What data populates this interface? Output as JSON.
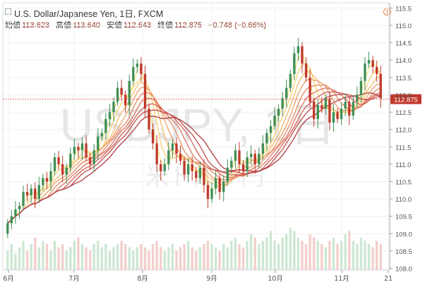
{
  "header": {
    "title": "U.S. Dollar/Japanese Yen, 1日, FXCM",
    "open_label": "始値",
    "open": "113.623",
    "high_label": "高値",
    "high": "113.640",
    "low_label": "安値",
    "low": "112.643",
    "close_label": "終値",
    "close": "112.875",
    "change": "−0.748 (−0.66%)"
  },
  "watermark": {
    "symbol": "USDJPY, 1日",
    "name": "米ドル / 円"
  },
  "colors": {
    "up": "#3f8f55",
    "down": "#c0392b",
    "price_line": "#e04a3a",
    "badge": "#c0392b",
    "warning": "#e8833a",
    "ribbon": [
      "#fbe58a",
      "#f7d06f",
      "#f3b96a",
      "#eea069",
      "#e68a64",
      "#dd745f",
      "#d15f58",
      "#c24c4c",
      "#b03c40"
    ]
  },
  "chart_data": {
    "type": "candlestick",
    "symbol": "USDJPY",
    "interval": "1日",
    "yaxis": {
      "ticks": [
        108.0,
        108.5,
        109.0,
        109.5,
        110.0,
        110.5,
        111.0,
        111.5,
        112.0,
        112.5,
        113.0,
        113.5,
        114.0,
        114.5,
        115.0,
        115.5
      ],
      "range": [
        107.95,
        115.65
      ]
    },
    "xaxis": {
      "ticks": [
        "6月",
        "7月",
        "8月",
        "9月",
        "10月",
        "11月",
        "21"
      ]
    },
    "last_price": "112.875",
    "moving_average_ribbon_count": 9,
    "close_series": [
      109.3,
      109.5,
      109.7,
      109.8,
      110.2,
      110.1,
      110.3,
      110.0,
      110.4,
      110.6,
      110.5,
      110.8,
      111.2,
      111.0,
      110.7,
      110.9,
      111.3,
      111.5,
      111.4,
      111.6,
      111.2,
      111.0,
      111.4,
      111.8,
      111.9,
      112.3,
      112.5,
      112.8,
      113.2,
      113.0,
      112.7,
      113.4,
      113.8,
      113.9,
      113.6,
      112.6,
      112.0,
      111.6,
      111.0,
      110.8,
      111.0,
      111.4,
      111.6,
      111.3,
      111.1,
      110.7,
      111.0,
      110.8,
      110.6,
      110.9,
      110.4,
      110.0,
      110.3,
      110.6,
      110.2,
      110.5,
      110.9,
      111.1,
      111.4,
      111.0,
      110.8,
      111.2,
      111.3,
      111.0,
      111.3,
      111.6,
      111.9,
      112.1,
      112.4,
      112.6,
      112.9,
      113.2,
      113.6,
      114.2,
      114.4,
      113.9,
      113.5,
      112.8,
      112.3,
      112.7,
      112.6,
      112.9,
      112.2,
      112.5,
      112.3,
      112.6,
      112.8,
      112.4,
      112.8,
      113.0,
      113.4,
      113.9,
      114.0,
      113.8,
      113.6,
      112.9
    ],
    "volume_series": [
      6,
      8,
      5,
      7,
      9,
      6,
      8,
      10,
      7,
      9,
      8,
      6,
      9,
      7,
      8,
      6,
      7,
      9,
      10,
      8,
      7,
      6,
      8,
      9,
      7,
      8,
      6,
      7,
      8,
      9,
      8,
      7,
      6,
      7,
      8,
      7,
      6,
      8,
      9,
      7,
      6,
      7,
      8,
      6,
      7,
      8,
      9,
      7,
      6,
      7,
      8,
      9,
      8,
      7,
      6,
      8,
      7,
      9,
      10,
      8,
      7,
      9,
      11,
      10,
      8,
      9,
      10,
      12,
      9,
      8,
      10,
      11,
      13,
      12,
      10,
      9,
      8,
      11,
      10,
      9,
      8,
      7,
      9,
      10,
      8,
      9,
      11,
      12,
      9,
      8,
      10,
      9,
      8,
      7,
      9,
      8
    ]
  }
}
